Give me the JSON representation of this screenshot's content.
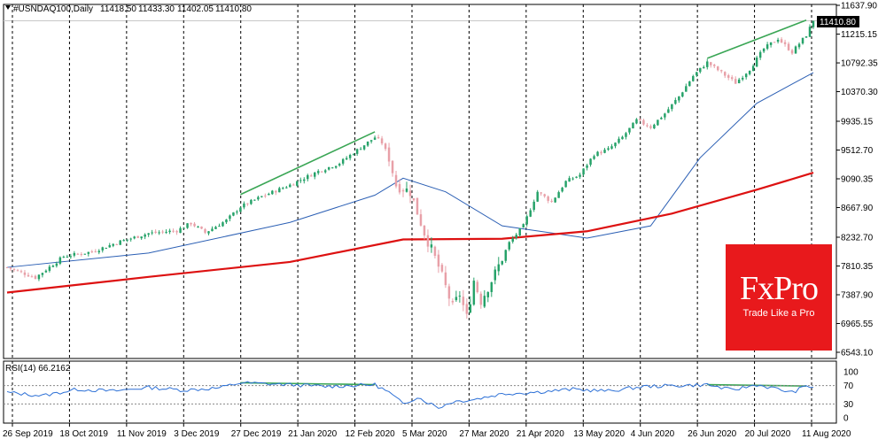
{
  "header": {
    "symbol": "#USNDAQ100,Daily",
    "open": "11418.50",
    "high": "11433.30",
    "low": "11402.05",
    "close": "11410.80"
  },
  "price_badge": "11410.80",
  "rsi_label": "RSI(14) 66.2162",
  "logo": {
    "brand": "FxPro",
    "tagline": "Trade Like a Pro"
  },
  "colors": {
    "bull": "#26a269",
    "bear": "#e8a0a8",
    "ma_fast": "#2b5fb4",
    "ma_slow": "#dd1111",
    "trend": "#3aa655",
    "rsi": "#2b6fd6",
    "logo_bg": "#e8191c"
  },
  "chart_data": {
    "type": "candlestick",
    "symbol": "#USNDAQ100",
    "timeframe": "Daily",
    "y_axis_ticks": [
      "11637.90",
      "11215.15",
      "10792.35",
      "10370.30",
      "9935.15",
      "9512.70",
      "9090.35",
      "8667.90",
      "8232.70",
      "7810.35",
      "7387.90",
      "6965.55",
      "6543.10"
    ],
    "ylim": [
      6543.1,
      11637.9
    ],
    "x_axis_ticks": [
      "26 Sep 2019",
      "18 Oct 2019",
      "11 Nov 2019",
      "3 Dec 2019",
      "27 Dec 2019",
      "21 Jan 2020",
      "12 Feb 2020",
      "5 Mar 2020",
      "27 Mar 2020",
      "21 Apr 2020",
      "13 May 2020",
      "4 Jun 2020",
      "26 Jun 2020",
      "20 Jul 2020",
      "11 Aug 2020"
    ],
    "trading_days": 229,
    "close_path": [
      {
        "day": 0,
        "close": 7790
      },
      {
        "day": 8,
        "close": 7640
      },
      {
        "day": 16,
        "close": 7950
      },
      {
        "day": 24,
        "close": 8020
      },
      {
        "day": 32,
        "close": 8170
      },
      {
        "day": 40,
        "close": 8290
      },
      {
        "day": 48,
        "close": 8330
      },
      {
        "day": 52,
        "close": 8440
      },
      {
        "day": 56,
        "close": 8300
      },
      {
        "day": 62,
        "close": 8480
      },
      {
        "day": 66,
        "close": 8680
      },
      {
        "day": 72,
        "close": 8830
      },
      {
        "day": 80,
        "close": 9000
      },
      {
        "day": 88,
        "close": 9200
      },
      {
        "day": 94,
        "close": 9320
      },
      {
        "day": 100,
        "close": 9550
      },
      {
        "day": 104,
        "close": 9700
      },
      {
        "day": 106,
        "close": 9620
      },
      {
        "day": 108,
        "close": 9400
      },
      {
        "day": 110,
        "close": 9000
      },
      {
        "day": 114,
        "close": 8900
      },
      {
        "day": 118,
        "close": 8300
      },
      {
        "day": 122,
        "close": 7800
      },
      {
        "day": 126,
        "close": 7200
      },
      {
        "day": 128,
        "close": 7400
      },
      {
        "day": 130,
        "close": 7050
      },
      {
        "day": 132,
        "close": 7600
      },
      {
        "day": 134,
        "close": 7300
      },
      {
        "day": 138,
        "close": 7700
      },
      {
        "day": 142,
        "close": 8150
      },
      {
        "day": 146,
        "close": 8400
      },
      {
        "day": 150,
        "close": 8900
      },
      {
        "day": 154,
        "close": 8750
      },
      {
        "day": 158,
        "close": 9050
      },
      {
        "day": 162,
        "close": 9150
      },
      {
        "day": 166,
        "close": 9450
      },
      {
        "day": 170,
        "close": 9520
      },
      {
        "day": 174,
        "close": 9700
      },
      {
        "day": 178,
        "close": 9950
      },
      {
        "day": 182,
        "close": 9850
      },
      {
        "day": 186,
        "close": 10050
      },
      {
        "day": 190,
        "close": 10300
      },
      {
        "day": 194,
        "close": 10600
      },
      {
        "day": 198,
        "close": 10800
      },
      {
        "day": 202,
        "close": 10650
      },
      {
        "day": 206,
        "close": 10500
      },
      {
        "day": 210,
        "close": 10700
      },
      {
        "day": 214,
        "close": 11000
      },
      {
        "day": 218,
        "close": 11150
      },
      {
        "day": 222,
        "close": 10950
      },
      {
        "day": 226,
        "close": 11200
      },
      {
        "day": 228,
        "close": 11410.8
      }
    ],
    "series": [
      {
        "name": "",
        "kind": "ma",
        "x_days": [
          0,
          40,
          80,
          104,
          112,
          124,
          140,
          164,
          182,
          196,
          212,
          228
        ],
        "values": [
          7790,
          8000,
          8450,
          8850,
          9100,
          8900,
          8400,
          8220,
          8400,
          9400,
          10200,
          10650
        ]
      },
      {
        "name": "",
        "kind": "ma",
        "x_days": [
          0,
          40,
          80,
          112,
          140,
          164,
          188,
          212,
          228
        ],
        "values": [
          7420,
          7650,
          7870,
          8200,
          8210,
          8320,
          8580,
          8930,
          9180
        ]
      }
    ],
    "trendlines": [
      {
        "panel": "price",
        "from": {
          "day": 66,
          "value": 8860
        },
        "to": {
          "day": 104,
          "value": 9780
        }
      },
      {
        "panel": "price",
        "from": {
          "day": 198,
          "value": 10860
        },
        "to": {
          "day": 226,
          "value": 11420
        }
      },
      {
        "panel": "rsi",
        "from": {
          "day": 66,
          "value": 76
        },
        "to": {
          "day": 104,
          "value": 72
        }
      },
      {
        "panel": "rsi",
        "from": {
          "day": 198,
          "value": 72
        },
        "to": {
          "day": 226,
          "value": 69
        }
      }
    ],
    "rsi": {
      "period": 14,
      "current": 66.2162,
      "levels": [
        70,
        30
      ],
      "ticks": [
        "100",
        "70",
        "30",
        "0"
      ],
      "path": [
        {
          "day": 0,
          "value": 55
        },
        {
          "day": 10,
          "value": 48
        },
        {
          "day": 20,
          "value": 62
        },
        {
          "day": 30,
          "value": 58
        },
        {
          "day": 40,
          "value": 66
        },
        {
          "day": 50,
          "value": 60
        },
        {
          "day": 60,
          "value": 65
        },
        {
          "day": 66,
          "value": 76
        },
        {
          "day": 80,
          "value": 72
        },
        {
          "day": 90,
          "value": 68
        },
        {
          "day": 104,
          "value": 72
        },
        {
          "day": 108,
          "value": 55
        },
        {
          "day": 112,
          "value": 30
        },
        {
          "day": 116,
          "value": 45
        },
        {
          "day": 122,
          "value": 22
        },
        {
          "day": 126,
          "value": 35
        },
        {
          "day": 132,
          "value": 40
        },
        {
          "day": 140,
          "value": 52
        },
        {
          "day": 150,
          "value": 56
        },
        {
          "day": 160,
          "value": 62
        },
        {
          "day": 170,
          "value": 58
        },
        {
          "day": 180,
          "value": 68
        },
        {
          "day": 190,
          "value": 70
        },
        {
          "day": 198,
          "value": 72
        },
        {
          "day": 205,
          "value": 60
        },
        {
          "day": 212,
          "value": 72
        },
        {
          "day": 218,
          "value": 62
        },
        {
          "day": 222,
          "value": 55
        },
        {
          "day": 226,
          "value": 69
        },
        {
          "day": 228,
          "value": 66.2162
        }
      ]
    }
  }
}
